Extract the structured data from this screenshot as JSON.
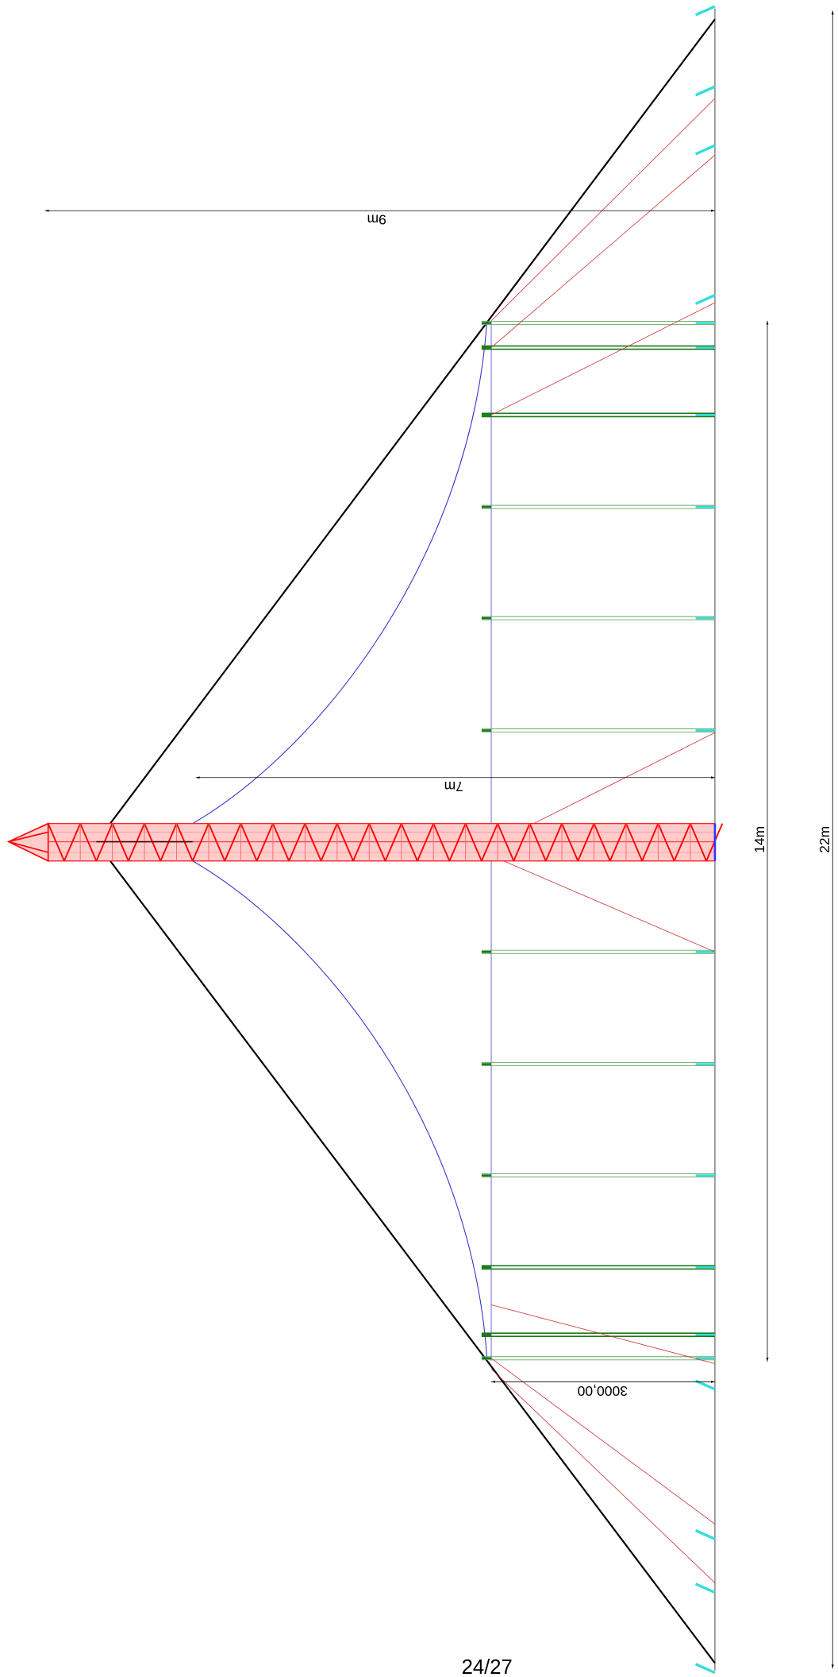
{
  "dimensions": [
    "9m",
    "7m",
    "14m",
    "22m",
    "3000,00"
  ],
  "page_number": "24/27"
}
